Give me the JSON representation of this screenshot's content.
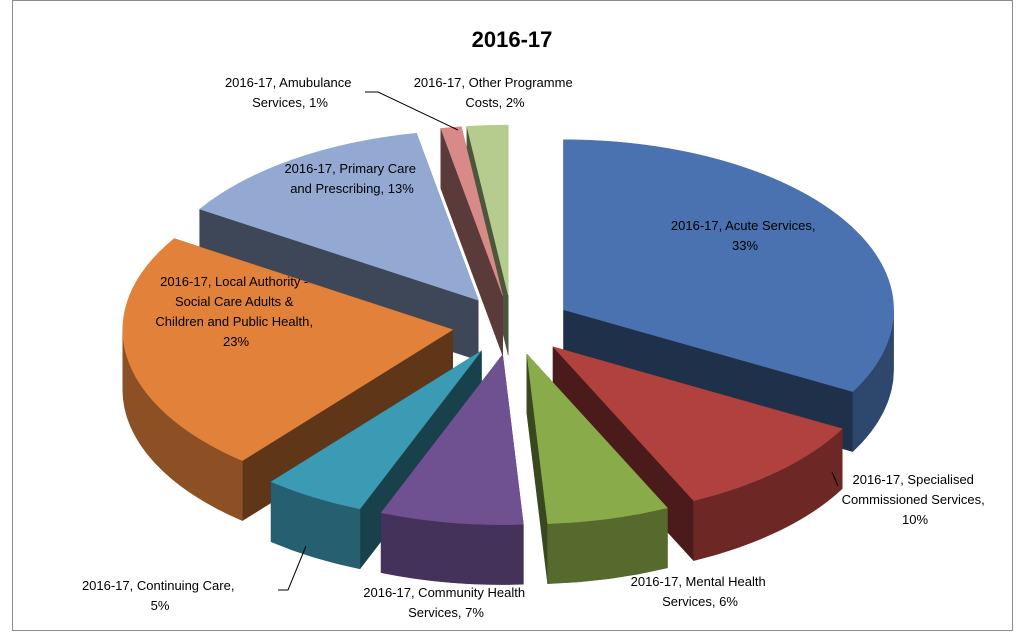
{
  "chart_data": {
    "type": "pie3d",
    "title": "2016-17",
    "categories": [
      "Acute Services",
      "Specialised Commissioned Services",
      "Mental Health Services",
      "Community Health Services",
      "Continuing Care",
      "Local Authority - Social Care Adults & Children and Public Health",
      "Primary Care and Prescribing",
      "Amubulance Services",
      "Other Programme Costs"
    ],
    "values": [
      33,
      10,
      6,
      7,
      5,
      23,
      13,
      1,
      2
    ],
    "value_labels": [
      "2016-17, Acute Services, 33%",
      "2016-17, Specialised Commissioned Services, 10%",
      "2016-17, Mental Health Services, 6%",
      "2016-17, Community Health Services, 7%",
      "2016-17, Continuing Care, 5%",
      "2016-17, Local Authority - Social Care Adults & Children and Public Health, 23%",
      "2016-17, Primary Care and Prescribing, 13%",
      "2016-17, Amubulance Services, 1%",
      "2016-17, Other Programme Costs, 2%"
    ],
    "colors": [
      "#4a72b0",
      "#b0413e",
      "#8aab4a",
      "#6f5091",
      "#3b9ab4",
      "#e2813a",
      "#93a9d2",
      "#d88a89",
      "#b6cc8f"
    ]
  }
}
